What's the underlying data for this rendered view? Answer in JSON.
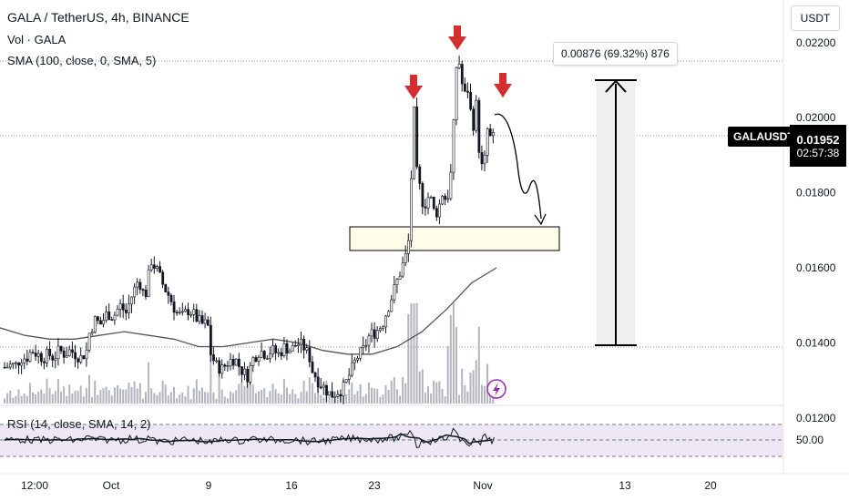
{
  "header": {
    "title": "GALA / TetherUS, 4h, BINANCE",
    "volume_label": "Vol · GALA",
    "sma_label": "SMA (100, close, 0, SMA, 5)",
    "rsi_label": "RSI (14, close, SMA, 14, 2)",
    "currency_button": "USDT"
  },
  "last_price": {
    "symbol": "GALAUSDT",
    "price": "0.01952",
    "countdown": "02:57:38"
  },
  "measure": {
    "label": "0.00876 (69.32%) 876"
  },
  "colors": {
    "candle": "#131722",
    "sma": "#555555",
    "arrow": "#d32f2f",
    "zone_fill": "#fffde7",
    "rsi_band": "#ede7f6",
    "volume": "#b2b5be"
  },
  "chart_data": {
    "type": "candlestick",
    "symbol": "GALA / TetherUS",
    "interval": "4h",
    "exchange": "BINANCE",
    "price_ticks": [
      "0.02200",
      "0.02000",
      "0.01800",
      "0.01600",
      "0.01400",
      "0.01200"
    ],
    "price_range": [
      0.0116,
      0.0232
    ],
    "date_ticks": [
      "12:00",
      "Oct",
      "9",
      "16",
      "23",
      "Nov",
      "13",
      "20"
    ],
    "rsi_ticks": [
      "50.00"
    ],
    "price_path": [
      [
        0.01335,
        0.0134,
        0.0134,
        0.0136,
        0.0136,
        0.0138,
        0.0137,
        0.0136,
        0.0137,
        0.0136,
        0.0138,
        0.0137,
        0.0138,
        0.0137,
        0.0136,
        0.0138
      ],
      [
        0.0142,
        0.0146,
        0.0145,
        0.0148,
        0.0147,
        0.015,
        0.0148,
        0.0153,
        0.0157,
        0.0152,
        0.0162,
        0.0159,
        0.0155,
        0.0152,
        0.0148,
        0.0147,
        0.0149,
        0.0147,
        0.0145,
        0.0145
      ],
      [
        0.0138,
        0.0134,
        0.0133,
        0.0135,
        0.0136,
        0.0133,
        0.0131,
        0.0136,
        0.0138,
        0.0137,
        0.0138,
        0.0137,
        0.0139,
        0.0138,
        0.014,
        0.0139,
        0.0136
      ],
      [
        0.0133,
        0.013,
        0.0128,
        0.0126,
        0.0127,
        0.0128,
        0.0132,
        0.0136,
        0.0138,
        0.0142,
        0.0143,
        0.0145,
        0.015,
        0.0155,
        0.016,
        0.0165,
        0.0204
      ],
      [
        0.0186,
        0.0181,
        0.0176,
        0.0179,
        0.0178,
        0.0174,
        0.0176,
        0.018,
        0.0178,
        0.0181,
        0.0198,
        0.0219,
        0.021,
        0.0206,
        0.0208,
        0.0196,
        0.0204,
        0.0189,
        0.0185,
        0.0197,
        0.0194,
        0.0195
      ]
    ],
    "sma_path": [
      0.0144,
      0.0142,
      0.0141,
      0.0141,
      0.0142,
      0.0143,
      0.0142,
      0.0141,
      0.0139,
      0.0139,
      0.014,
      0.0141,
      0.014,
      0.0138,
      0.0137,
      0.0137,
      0.0139,
      0.0143,
      0.0149,
      0.0156,
      0.016
    ],
    "annotations": {
      "measure_from": 0.01262,
      "measure_to": 0.02138,
      "measure_change": 0.00876,
      "measure_percent": 69.32,
      "support_zone": [
        0.0158,
        0.0165
      ],
      "dotted_levels": [
        0.0222,
        0.01952,
        0.01262
      ],
      "down_arrows": 3,
      "projected_path": "curved arrow down into support zone"
    }
  }
}
